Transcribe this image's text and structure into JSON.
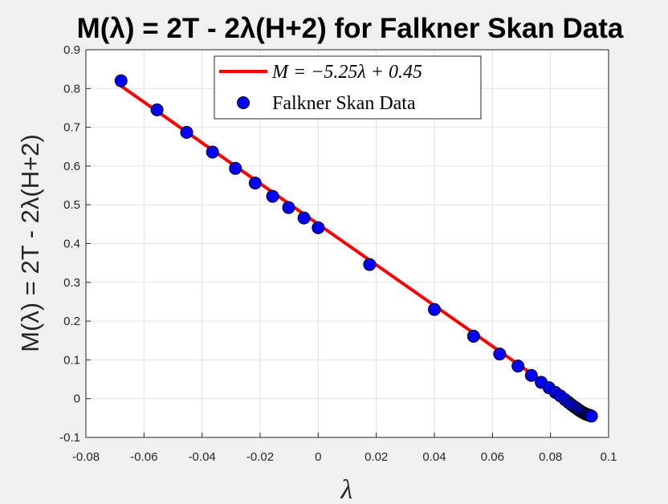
{
  "chart_data": {
    "type": "scatter",
    "title": "M(λ) = 2T - 2λ(H+2) for Falkner Skan Data",
    "xlabel": "λ",
    "ylabel": "M(λ) = 2T - 2λ(H+2)",
    "xlim": [
      -0.08,
      0.1
    ],
    "ylim": [
      -0.1,
      0.9
    ],
    "xticks": [
      "-0.08",
      "-0.06",
      "-0.04",
      "-0.02",
      "0",
      "0.02",
      "0.04",
      "0.06",
      "0.08",
      "0.1"
    ],
    "yticks": [
      "-0.1",
      "0",
      "0.1",
      "0.2",
      "0.3",
      "0.4",
      "0.5",
      "0.6",
      "0.7",
      "0.8",
      "0.9"
    ],
    "grid": true,
    "legend_position": "top-center",
    "series": [
      {
        "name": "M = −5.25λ + 0.45",
        "kind": "line",
        "color": "#ff0000",
        "x": [
          -0.068,
          0.0945
        ],
        "y": [
          0.807,
          -0.046
        ]
      },
      {
        "name": "Falkner Skan Data",
        "kind": "scatter",
        "color": "#0000ff",
        "x": [
          -0.0679,
          -0.0555,
          -0.0453,
          -0.0364,
          -0.0285,
          -0.0217,
          -0.0157,
          -0.0102,
          -0.0049,
          0.0,
          0.0177,
          0.04,
          0.0535,
          0.0625,
          0.0688,
          0.0734,
          0.0768,
          0.0795,
          0.0817,
          0.0834,
          0.0849,
          0.0861,
          0.0871,
          0.088,
          0.0888,
          0.0895,
          0.0901,
          0.0907,
          0.0912,
          0.0917,
          0.0922,
          0.0926,
          0.093,
          0.0934,
          0.0938,
          0.0941
        ],
        "y": [
          0.82,
          0.745,
          0.687,
          0.636,
          0.594,
          0.556,
          0.522,
          0.493,
          0.466,
          0.441,
          0.346,
          0.23,
          0.161,
          0.115,
          0.084,
          0.06,
          0.042,
          0.028,
          0.016,
          0.007,
          -0.002,
          -0.009,
          -0.015,
          -0.02,
          -0.024,
          -0.028,
          -0.031,
          -0.034,
          -0.036,
          -0.038,
          -0.04,
          -0.041,
          -0.042,
          -0.043,
          -0.044,
          -0.045
        ]
      }
    ]
  }
}
